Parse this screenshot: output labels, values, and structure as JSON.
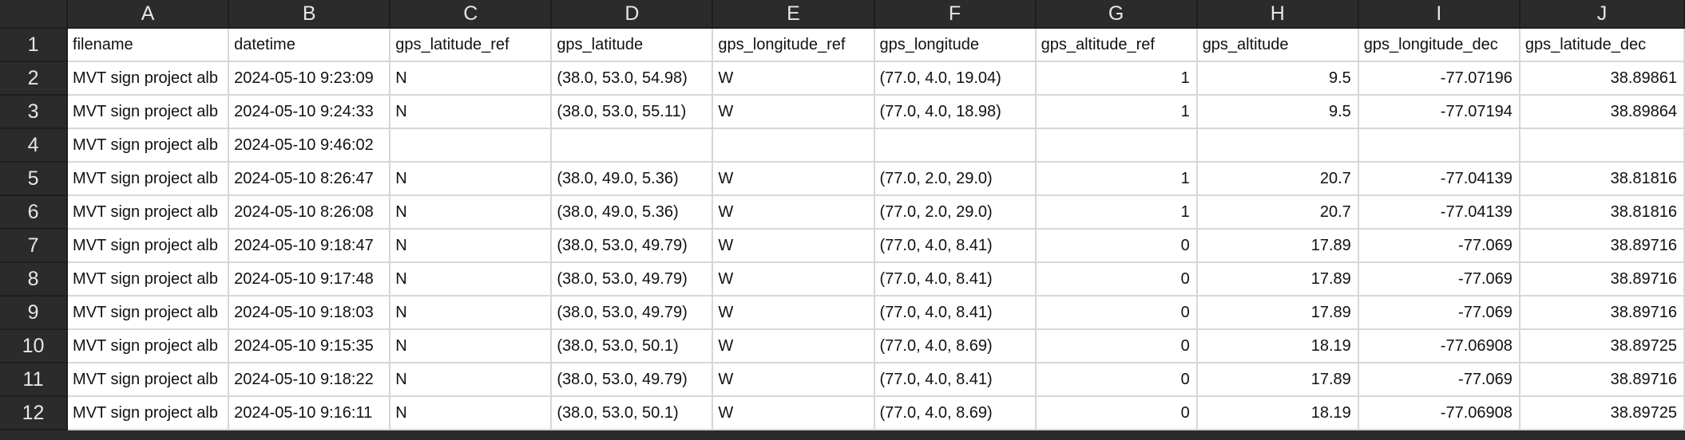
{
  "columns": [
    "A",
    "B",
    "C",
    "D",
    "E",
    "F",
    "G",
    "H",
    "I",
    "J"
  ],
  "rows": [
    {
      "num": "1",
      "cells": [
        "filename",
        "datetime",
        "gps_latitude_ref",
        "gps_latitude",
        "gps_longitude_ref",
        "gps_longitude",
        "gps_altitude_ref",
        "gps_altitude",
        "gps_longitude_dec",
        "gps_latitude_dec"
      ]
    },
    {
      "num": "2",
      "cells": [
        "MVT sign project alb",
        "2024-05-10 9:23:09",
        "N",
        "(38.0, 53.0, 54.98)",
        "W",
        "(77.0, 4.0, 19.04)",
        "1",
        "9.5",
        "-77.07196",
        "38.89861"
      ]
    },
    {
      "num": "3",
      "cells": [
        "MVT sign project alb",
        "2024-05-10 9:24:33",
        "N",
        "(38.0, 53.0, 55.11)",
        "W",
        "(77.0, 4.0, 18.98)",
        "1",
        "9.5",
        "-77.07194",
        "38.89864"
      ]
    },
    {
      "num": "4",
      "cells": [
        "MVT sign project alb",
        "2024-05-10 9:46:02",
        "",
        "",
        "",
        "",
        "",
        "",
        "",
        ""
      ]
    },
    {
      "num": "5",
      "cells": [
        "MVT sign project alb",
        "2024-05-10 8:26:47",
        "N",
        "(38.0, 49.0, 5.36)",
        "W",
        "(77.0, 2.0, 29.0)",
        "1",
        "20.7",
        "-77.04139",
        "38.81816"
      ]
    },
    {
      "num": "6",
      "cells": [
        "MVT sign project alb",
        "2024-05-10 8:26:08",
        "N",
        "(38.0, 49.0, 5.36)",
        "W",
        "(77.0, 2.0, 29.0)",
        "1",
        "20.7",
        "-77.04139",
        "38.81816"
      ]
    },
    {
      "num": "7",
      "cells": [
        "MVT sign project alb",
        "2024-05-10 9:18:47",
        "N",
        "(38.0, 53.0, 49.79)",
        "W",
        "(77.0, 4.0, 8.41)",
        "0",
        "17.89",
        "-77.069",
        "38.89716"
      ]
    },
    {
      "num": "8",
      "cells": [
        "MVT sign project alb",
        "2024-05-10 9:17:48",
        "N",
        "(38.0, 53.0, 49.79)",
        "W",
        "(77.0, 4.0, 8.41)",
        "0",
        "17.89",
        "-77.069",
        "38.89716"
      ]
    },
    {
      "num": "9",
      "cells": [
        "MVT sign project alb",
        "2024-05-10 9:18:03",
        "N",
        "(38.0, 53.0, 49.79)",
        "W",
        "(77.0, 4.0, 8.41)",
        "0",
        "17.89",
        "-77.069",
        "38.89716"
      ]
    },
    {
      "num": "10",
      "cells": [
        "MVT sign project alb",
        "2024-05-10 9:15:35",
        "N",
        "(38.0, 53.0, 50.1)",
        "W",
        "(77.0, 4.0, 8.69)",
        "0",
        "18.19",
        "-77.06908",
        "38.89725"
      ]
    },
    {
      "num": "11",
      "cells": [
        "MVT sign project alb",
        "2024-05-10 9:18:22",
        "N",
        "(38.0, 53.0, 49.79)",
        "W",
        "(77.0, 4.0, 8.41)",
        "0",
        "17.89",
        "-77.069",
        "38.89716"
      ]
    },
    {
      "num": "12",
      "cells": [
        "MVT sign project alb",
        "2024-05-10 9:16:11",
        "N",
        "(38.0, 53.0, 50.1)",
        "W",
        "(77.0, 4.0, 8.69)",
        "0",
        "18.19",
        "-77.06908",
        "38.89725"
      ]
    }
  ]
}
